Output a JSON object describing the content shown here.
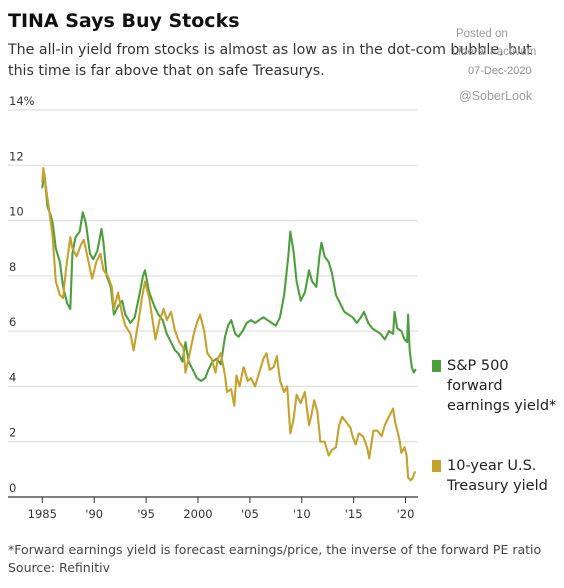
{
  "header": {
    "title": "TINA Says Buy Stocks",
    "subtitle": "The all-in yield from stocks is almost as low as in the dot-com bubble, but this time is far above that on safe Treasurys."
  },
  "watermark": {
    "posted_on": "Posted on",
    "source_blog": "Liberal Factivum",
    "date": "07-Dec-2020",
    "handle": "@SoberLook"
  },
  "footer": {
    "footnote": "*Forward earnings yield is forecast earnings/price, the inverse of the forward PE ratio",
    "source": "Source: Refinitiv"
  },
  "colors": {
    "sp500": "#4c9f3c",
    "treasury": "#c5a12e",
    "grid": "#d9d9d9",
    "axis": "#333333"
  },
  "chart_data": {
    "type": "line",
    "y_unit": "%",
    "ylim": [
      0,
      14
    ],
    "yticks": [
      {
        "value": 0,
        "label": "0"
      },
      {
        "value": 2,
        "label": "2"
      },
      {
        "value": 4,
        "label": "4"
      },
      {
        "value": 6,
        "label": "6"
      },
      {
        "value": 8,
        "label": "8"
      },
      {
        "value": 10,
        "label": "10"
      },
      {
        "value": 12,
        "label": "12"
      },
      {
        "value": 14,
        "label": "14%"
      }
    ],
    "xlim": [
      1984.2,
      2021.2
    ],
    "xticks": [
      {
        "value": 1985,
        "label": "1985"
      },
      {
        "value": 1990,
        "label": "'90"
      },
      {
        "value": 1995,
        "label": "'95"
      },
      {
        "value": 2000,
        "label": "2000"
      },
      {
        "value": 2005,
        "label": "'05"
      },
      {
        "value": 2010,
        "label": "'10"
      },
      {
        "value": 2015,
        "label": "'15"
      },
      {
        "value": 2020,
        "label": "'20"
      }
    ],
    "grid": "horizontal",
    "legend_position": "right",
    "series": [
      {
        "key": "sp500",
        "name": "S&P 500 forward earnings yield*",
        "legend_lines": [
          "S&P 500",
          "forward",
          "earnings yield*"
        ],
        "points": [
          [
            1985.0,
            11.2
          ],
          [
            1985.2,
            11.7
          ],
          [
            1985.5,
            10.5
          ],
          [
            1985.8,
            10.2
          ],
          [
            1986.0,
            9.9
          ],
          [
            1986.3,
            9.0
          ],
          [
            1986.7,
            8.5
          ],
          [
            1987.0,
            7.6
          ],
          [
            1987.4,
            7.0
          ],
          [
            1987.7,
            6.8
          ],
          [
            1987.9,
            8.8
          ],
          [
            1988.2,
            9.4
          ],
          [
            1988.6,
            9.6
          ],
          [
            1988.9,
            10.3
          ],
          [
            1989.2,
            9.9
          ],
          [
            1989.6,
            8.8
          ],
          [
            1989.9,
            8.6
          ],
          [
            1990.3,
            8.9
          ],
          [
            1990.7,
            9.7
          ],
          [
            1990.9,
            9.2
          ],
          [
            1991.2,
            8.0
          ],
          [
            1991.6,
            7.6
          ],
          [
            1991.9,
            6.6
          ],
          [
            1992.3,
            6.9
          ],
          [
            1992.7,
            7.1
          ],
          [
            1993.0,
            6.6
          ],
          [
            1993.5,
            6.3
          ],
          [
            1993.9,
            6.5
          ],
          [
            1994.3,
            7.2
          ],
          [
            1994.7,
            8.0
          ],
          [
            1994.9,
            8.2
          ],
          [
            1995.3,
            7.4
          ],
          [
            1995.8,
            6.9
          ],
          [
            1996.2,
            6.6
          ],
          [
            1996.6,
            6.4
          ],
          [
            1997.0,
            5.9
          ],
          [
            1997.4,
            5.6
          ],
          [
            1997.8,
            5.3
          ],
          [
            1998.1,
            5.2
          ],
          [
            1998.5,
            4.9
          ],
          [
            1998.8,
            5.6
          ],
          [
            1999.1,
            4.9
          ],
          [
            1999.5,
            4.6
          ],
          [
            1999.9,
            4.3
          ],
          [
            2000.3,
            4.2
          ],
          [
            2000.7,
            4.3
          ],
          [
            2001.0,
            4.6
          ],
          [
            2001.4,
            4.9
          ],
          [
            2001.8,
            5.0
          ],
          [
            2002.2,
            4.8
          ],
          [
            2002.6,
            5.8
          ],
          [
            2002.9,
            6.2
          ],
          [
            2003.2,
            6.4
          ],
          [
            2003.6,
            5.9
          ],
          [
            2003.9,
            5.8
          ],
          [
            2004.3,
            6.0
          ],
          [
            2004.7,
            6.3
          ],
          [
            2005.1,
            6.4
          ],
          [
            2005.5,
            6.3
          ],
          [
            2005.9,
            6.4
          ],
          [
            2006.3,
            6.5
          ],
          [
            2006.7,
            6.4
          ],
          [
            2007.1,
            6.3
          ],
          [
            2007.5,
            6.2
          ],
          [
            2007.9,
            6.5
          ],
          [
            2008.3,
            7.3
          ],
          [
            2008.7,
            8.7
          ],
          [
            2008.9,
            9.6
          ],
          [
            2009.2,
            8.9
          ],
          [
            2009.5,
            7.8
          ],
          [
            2009.9,
            7.1
          ],
          [
            2010.3,
            7.4
          ],
          [
            2010.7,
            8.2
          ],
          [
            2011.0,
            7.8
          ],
          [
            2011.4,
            7.6
          ],
          [
            2011.7,
            8.7
          ],
          [
            2011.9,
            9.2
          ],
          [
            2012.2,
            8.7
          ],
          [
            2012.6,
            8.5
          ],
          [
            2012.9,
            8.1
          ],
          [
            2013.3,
            7.3
          ],
          [
            2013.7,
            7.0
          ],
          [
            2014.1,
            6.7
          ],
          [
            2014.5,
            6.6
          ],
          [
            2014.9,
            6.5
          ],
          [
            2015.3,
            6.3
          ],
          [
            2015.7,
            6.5
          ],
          [
            2016.0,
            6.7
          ],
          [
            2016.4,
            6.3
          ],
          [
            2016.8,
            6.1
          ],
          [
            2017.2,
            6.0
          ],
          [
            2017.6,
            5.9
          ],
          [
            2018.0,
            5.7
          ],
          [
            2018.4,
            6.0
          ],
          [
            2018.8,
            5.9
          ],
          [
            2018.95,
            6.7
          ],
          [
            2019.2,
            6.1
          ],
          [
            2019.6,
            6.0
          ],
          [
            2019.9,
            5.7
          ],
          [
            2020.15,
            5.6
          ],
          [
            2020.25,
            6.6
          ],
          [
            2020.4,
            5.3
          ],
          [
            2020.6,
            4.7
          ],
          [
            2020.8,
            4.5
          ],
          [
            2020.95,
            4.6
          ]
        ]
      },
      {
        "key": "treasury",
        "name": "10-year U.S. Treasury yield",
        "legend_lines": [
          "10-year U.S.",
          "Treasury yield"
        ],
        "points": [
          [
            1985.0,
            11.4
          ],
          [
            1985.1,
            11.9
          ],
          [
            1985.5,
            10.8
          ],
          [
            1985.8,
            10.0
          ],
          [
            1986.0,
            9.4
          ],
          [
            1986.3,
            7.8
          ],
          [
            1986.7,
            7.3
          ],
          [
            1987.0,
            7.2
          ],
          [
            1987.3,
            8.3
          ],
          [
            1987.7,
            9.4
          ],
          [
            1987.9,
            9.0
          ],
          [
            1988.3,
            8.7
          ],
          [
            1988.7,
            9.1
          ],
          [
            1989.0,
            9.3
          ],
          [
            1989.4,
            8.6
          ],
          [
            1989.8,
            7.9
          ],
          [
            1990.2,
            8.5
          ],
          [
            1990.6,
            8.8
          ],
          [
            1990.9,
            8.2
          ],
          [
            1991.3,
            8.0
          ],
          [
            1991.7,
            7.6
          ],
          [
            1991.9,
            6.8
          ],
          [
            1992.3,
            7.4
          ],
          [
            1992.7,
            6.6
          ],
          [
            1993.0,
            6.2
          ],
          [
            1993.5,
            5.9
          ],
          [
            1993.8,
            5.3
          ],
          [
            1994.2,
            6.2
          ],
          [
            1994.6,
            7.2
          ],
          [
            1994.9,
            7.8
          ],
          [
            1995.3,
            7.2
          ],
          [
            1995.7,
            6.2
          ],
          [
            1995.9,
            5.7
          ],
          [
            1996.3,
            6.4
          ],
          [
            1996.7,
            6.8
          ],
          [
            1997.0,
            6.4
          ],
          [
            1997.4,
            6.7
          ],
          [
            1997.8,
            6.0
          ],
          [
            1998.2,
            5.6
          ],
          [
            1998.6,
            5.4
          ],
          [
            1998.8,
            4.5
          ],
          [
            1999.2,
            5.2
          ],
          [
            1999.6,
            5.9
          ],
          [
            1999.9,
            6.3
          ],
          [
            2000.2,
            6.6
          ],
          [
            2000.6,
            6.0
          ],
          [
            2000.9,
            5.2
          ],
          [
            2001.3,
            5.0
          ],
          [
            2001.7,
            4.5
          ],
          [
            2001.9,
            5.0
          ],
          [
            2002.2,
            5.2
          ],
          [
            2002.6,
            4.4
          ],
          [
            2002.8,
            3.8
          ],
          [
            2003.2,
            3.9
          ],
          [
            2003.5,
            3.3
          ],
          [
            2003.7,
            4.4
          ],
          [
            2004.0,
            4.0
          ],
          [
            2004.4,
            4.7
          ],
          [
            2004.8,
            4.2
          ],
          [
            2005.1,
            4.3
          ],
          [
            2005.5,
            4.0
          ],
          [
            2005.9,
            4.5
          ],
          [
            2006.3,
            5.0
          ],
          [
            2006.6,
            5.2
          ],
          [
            2006.9,
            4.6
          ],
          [
            2007.3,
            4.7
          ],
          [
            2007.6,
            5.1
          ],
          [
            2007.9,
            4.2
          ],
          [
            2008.3,
            3.8
          ],
          [
            2008.6,
            4.0
          ],
          [
            2008.9,
            2.3
          ],
          [
            2009.2,
            2.8
          ],
          [
            2009.5,
            3.7
          ],
          [
            2009.9,
            3.4
          ],
          [
            2010.3,
            3.8
          ],
          [
            2010.7,
            2.6
          ],
          [
            2010.9,
            2.9
          ],
          [
            2011.2,
            3.5
          ],
          [
            2011.5,
            3.1
          ],
          [
            2011.8,
            2.0
          ],
          [
            2012.2,
            2.0
          ],
          [
            2012.6,
            1.5
          ],
          [
            2012.9,
            1.7
          ],
          [
            2013.3,
            1.8
          ],
          [
            2013.6,
            2.6
          ],
          [
            2013.9,
            2.9
          ],
          [
            2014.3,
            2.7
          ],
          [
            2014.7,
            2.5
          ],
          [
            2014.9,
            2.2
          ],
          [
            2015.2,
            1.9
          ],
          [
            2015.5,
            2.3
          ],
          [
            2015.9,
            2.2
          ],
          [
            2016.3,
            1.8
          ],
          [
            2016.5,
            1.4
          ],
          [
            2016.9,
            2.4
          ],
          [
            2017.3,
            2.4
          ],
          [
            2017.7,
            2.2
          ],
          [
            2018.0,
            2.6
          ],
          [
            2018.4,
            2.9
          ],
          [
            2018.8,
            3.2
          ],
          [
            2019.0,
            2.7
          ],
          [
            2019.4,
            2.1
          ],
          [
            2019.6,
            1.6
          ],
          [
            2019.9,
            1.8
          ],
          [
            2020.1,
            1.5
          ],
          [
            2020.25,
            0.7
          ],
          [
            2020.5,
            0.6
          ],
          [
            2020.7,
            0.7
          ],
          [
            2020.9,
            0.9
          ]
        ]
      }
    ]
  }
}
